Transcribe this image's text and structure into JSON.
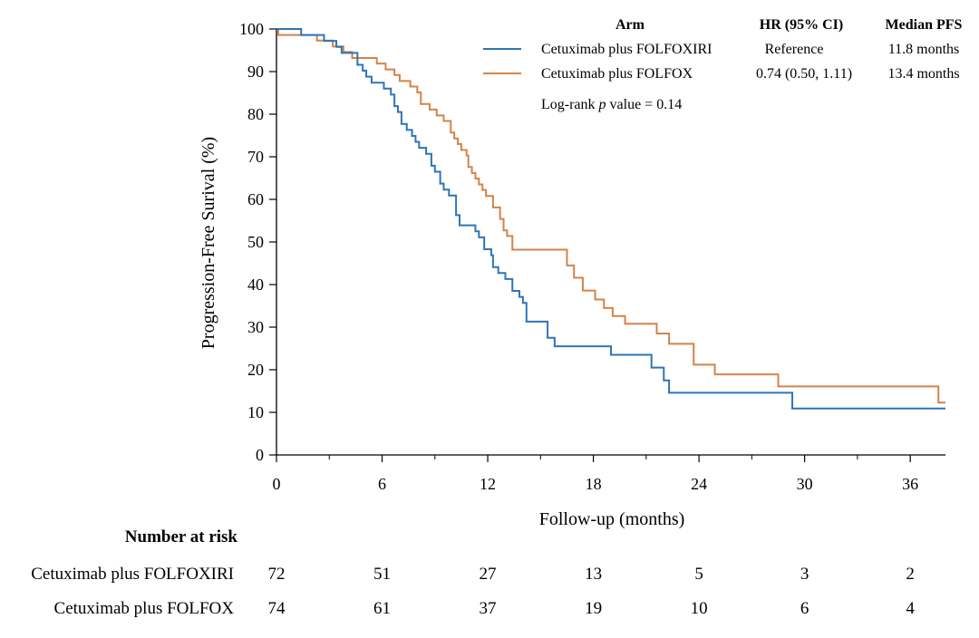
{
  "chart_data": {
    "type": "line",
    "subtype": "kaplan-meier",
    "xlabel": "Follow-up (months)",
    "ylabel": "Progression-Free Surival (%)",
    "xlim": [
      0,
      38
    ],
    "ylim": [
      0,
      100
    ],
    "xticks": [
      0,
      6,
      12,
      18,
      24,
      30,
      36
    ],
    "yticks": [
      0,
      10,
      20,
      30,
      40,
      50,
      60,
      70,
      80,
      90,
      100
    ],
    "grid": false,
    "legend_position": "top-right",
    "colors": {
      "folfoxiri": "#2e75b6",
      "folfox": "#d4834a",
      "axis": "#000000"
    },
    "series": [
      {
        "name": "Cetuximab plus FOLFOXIRI",
        "color": "#2e75b6",
        "x": [
          0,
          1.4,
          2.7,
          3.4,
          3.7,
          4.6,
          4.9,
          5.1,
          5.4,
          6.1,
          6.5,
          6.7,
          6.9,
          7.1,
          7.4,
          7.7,
          7.9,
          8.1,
          8.5,
          8.8,
          9.0,
          9.3,
          9.5,
          9.8,
          10.2,
          10.4,
          10.6,
          11.3,
          11.5,
          11.8,
          12.2,
          12.3,
          12.6,
          13.0,
          13.4,
          13.8,
          14.0,
          14.2,
          14.7,
          15.4,
          15.8,
          19.0,
          21.3,
          22.0,
          22.3,
          29.3,
          38.0
        ],
        "y": [
          100,
          98.6,
          97.2,
          95.8,
          94.4,
          91.6,
          90.2,
          88.8,
          87.4,
          86.0,
          84.6,
          81.9,
          80.5,
          77.7,
          76.3,
          74.9,
          73.5,
          72.1,
          70.7,
          67.9,
          66.5,
          63.7,
          62.3,
          60.9,
          56.3,
          53.9,
          53.9,
          52.5,
          51.1,
          48.3,
          46.9,
          44.1,
          42.7,
          41.3,
          38.5,
          37.1,
          35.7,
          31.3,
          31.3,
          27.5,
          25.5,
          23.5,
          20.5,
          17.5,
          14.6,
          10.9,
          10.9
        ]
      },
      {
        "name": "Cetuximab plus FOLFOX",
        "color": "#d4834a",
        "x": [
          0,
          0.1,
          2.3,
          3.2,
          3.8,
          4.3,
          5.7,
          6.2,
          6.7,
          7.0,
          7.6,
          8.0,
          8.2,
          8.7,
          9.1,
          9.5,
          9.9,
          10.1,
          10.3,
          10.5,
          10.8,
          10.9,
          11.1,
          11.3,
          11.5,
          11.7,
          11.9,
          12.3,
          12.7,
          12.9,
          13.1,
          13.4,
          15.5,
          16.5,
          16.9,
          17.4,
          18.1,
          18.6,
          19.1,
          19.8,
          21.6,
          22.3,
          22.6,
          23.7,
          24.1,
          24.9,
          28.5,
          37.6,
          38.0
        ],
        "y": [
          100,
          98.6,
          97.3,
          95.9,
          94.6,
          93.2,
          91.9,
          90.5,
          89.2,
          87.8,
          86.5,
          85.1,
          82.4,
          81.1,
          79.7,
          78.4,
          75.7,
          74.3,
          73.0,
          71.6,
          70.3,
          67.6,
          66.2,
          64.9,
          63.5,
          62.2,
          60.8,
          58.1,
          55.4,
          52.7,
          51.4,
          48.2,
          48.2,
          44.5,
          41.6,
          38.6,
          36.5,
          34.5,
          32.6,
          30.8,
          28.5,
          26.1,
          26.1,
          21.2,
          21.2,
          18.9,
          16.1,
          12.3,
          12.3
        ]
      }
    ],
    "legend": {
      "headers": [
        "Arm",
        "HR (95% CI)",
        "Median PFS"
      ],
      "rows": [
        {
          "arm": "Cetuximab plus FOLFOXIRI",
          "hr": "Reference",
          "median": "11.8 months"
        },
        {
          "arm": "Cetuximab plus FOLFOX",
          "hr": "0.74 (0.50, 1.11)",
          "median": "13.4 months"
        }
      ],
      "note_prefix": "Log-rank ",
      "note_italic": "p",
      "note_suffix": " value = 0.14"
    },
    "risk_table": {
      "title": "Number at risk",
      "times": [
        0,
        6,
        12,
        18,
        24,
        30,
        36
      ],
      "rows": [
        {
          "label": "Cetuximab plus FOLFOXIRI",
          "values": [
            72,
            51,
            27,
            13,
            5,
            3,
            2
          ]
        },
        {
          "label": "Cetuximab plus FOLFOX",
          "values": [
            74,
            61,
            37,
            19,
            10,
            6,
            4
          ]
        }
      ]
    }
  }
}
